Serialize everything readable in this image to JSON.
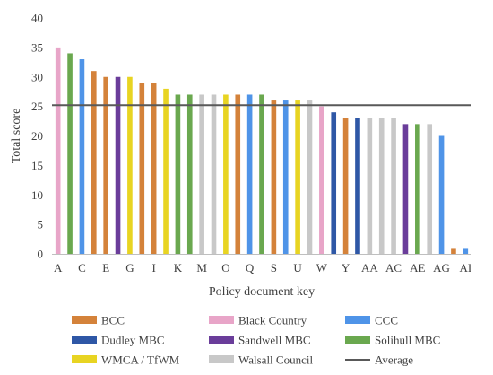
{
  "chart_data": {
    "type": "bar",
    "xlabel": "Policy document key",
    "ylabel": "Total score",
    "ylim": [
      0,
      40
    ],
    "yticks": [
      0,
      5,
      10,
      15,
      20,
      25,
      30,
      35,
      40
    ],
    "grid": false,
    "legend_position": "bottom",
    "average": {
      "name": "Average",
      "value": 25.2,
      "color": "#595959"
    },
    "groups": [
      {
        "name": "BCC",
        "color": "#d4823a"
      },
      {
        "name": "Black Country",
        "color": "#e8a5c8"
      },
      {
        "name": "CCC",
        "color": "#4f94e8"
      },
      {
        "name": "Dudley MBC",
        "color": "#2e57a6"
      },
      {
        "name": "Sandwell MBC",
        "color": "#6a3d9a"
      },
      {
        "name": "Solihull MBC",
        "color": "#6aa84f"
      },
      {
        "name": "WMCA / TfWM",
        "color": "#e8d422"
      },
      {
        "name": "Walsall Council",
        "color": "#c8c8c8"
      }
    ],
    "bars": [
      {
        "key": "A",
        "value": 35,
        "group": "Black Country"
      },
      {
        "key": "B",
        "value": 34,
        "group": "Solihull MBC"
      },
      {
        "key": "C",
        "value": 33,
        "group": "CCC"
      },
      {
        "key": "D",
        "value": 31,
        "group": "BCC"
      },
      {
        "key": "E",
        "value": 30,
        "group": "BCC"
      },
      {
        "key": "F",
        "value": 30,
        "group": "Sandwell MBC"
      },
      {
        "key": "G",
        "value": 30,
        "group": "WMCA / TfWM"
      },
      {
        "key": "H",
        "value": 29,
        "group": "BCC"
      },
      {
        "key": "I",
        "value": 29,
        "group": "BCC"
      },
      {
        "key": "J",
        "value": 28,
        "group": "WMCA / TfWM"
      },
      {
        "key": "K",
        "value": 27,
        "group": "Solihull MBC"
      },
      {
        "key": "L",
        "value": 27,
        "group": "Solihull MBC"
      },
      {
        "key": "M",
        "value": 27,
        "group": "Walsall Council"
      },
      {
        "key": "N",
        "value": 27,
        "group": "Walsall Council"
      },
      {
        "key": "O",
        "value": 27,
        "group": "WMCA / TfWM"
      },
      {
        "key": "P",
        "value": 27,
        "group": "BCC"
      },
      {
        "key": "Q",
        "value": 27,
        "group": "CCC"
      },
      {
        "key": "R",
        "value": 27,
        "group": "Solihull MBC"
      },
      {
        "key": "S",
        "value": 26,
        "group": "BCC"
      },
      {
        "key": "T",
        "value": 26,
        "group": "CCC"
      },
      {
        "key": "U",
        "value": 26,
        "group": "WMCA / TfWM"
      },
      {
        "key": "V",
        "value": 26,
        "group": "Walsall Council"
      },
      {
        "key": "W",
        "value": 25,
        "group": "Black Country"
      },
      {
        "key": "X",
        "value": 24,
        "group": "Dudley MBC"
      },
      {
        "key": "Y",
        "value": 23,
        "group": "BCC"
      },
      {
        "key": "Z",
        "value": 23,
        "group": "Dudley MBC"
      },
      {
        "key": "AA",
        "value": 23,
        "group": "Walsall Council"
      },
      {
        "key": "AB",
        "value": 23,
        "group": "Walsall Council"
      },
      {
        "key": "AC",
        "value": 23,
        "group": "Walsall Council"
      },
      {
        "key": "AD",
        "value": 22,
        "group": "Sandwell MBC"
      },
      {
        "key": "AE",
        "value": 22,
        "group": "Solihull MBC"
      },
      {
        "key": "AF",
        "value": 22,
        "group": "Walsall Council"
      },
      {
        "key": "AG",
        "value": 20,
        "group": "CCC"
      },
      {
        "key": "AH",
        "value": 1,
        "group": "BCC"
      },
      {
        "key": "AI",
        "value": 1,
        "group": "CCC"
      }
    ],
    "visible_xtick_labels": [
      "A",
      "C",
      "E",
      "G",
      "I",
      "K",
      "M",
      "O",
      "Q",
      "S",
      "U",
      "W",
      "Y",
      "AA",
      "AC",
      "AE",
      "AG",
      "AI"
    ]
  }
}
